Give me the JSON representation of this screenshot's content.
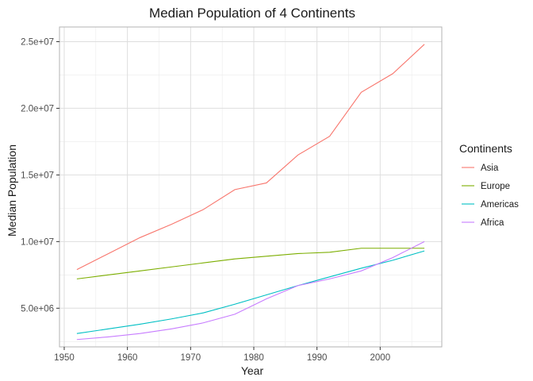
{
  "chart_data": {
    "type": "line",
    "title": "Median Population of 4 Continents",
    "xlabel": "Year",
    "ylabel": "Median Population",
    "xlim": [
      1949.25,
      2009.75
    ],
    "ylim": [
      2100000,
      26100000
    ],
    "x_ticks": [
      1950,
      1960,
      1970,
      1980,
      1990,
      2000
    ],
    "x_tick_labels": [
      "1950",
      "1960",
      "1970",
      "1980",
      "1990",
      "2000"
    ],
    "y_ticks": [
      5000000,
      10000000,
      15000000,
      20000000,
      25000000
    ],
    "y_tick_labels": [
      "5.0e+06",
      "1.0e+07",
      "1.5e+07",
      "2.0e+07",
      "2.5e+07"
    ],
    "grid": true,
    "legend_title": "Continents",
    "legend_position": "right",
    "x": [
      1952,
      1957,
      1962,
      1967,
      1972,
      1977,
      1982,
      1987,
      1992,
      1997,
      2002,
      2007
    ],
    "series": [
      {
        "name": "Asia",
        "color": "#F8766D",
        "values": [
          7900000,
          9100000,
          10300000,
          11300000,
          12400000,
          13900000,
          14400000,
          16500000,
          17900000,
          21200000,
          22600000,
          24800000
        ]
      },
      {
        "name": "Europe",
        "color": "#7CAE00",
        "values": [
          7200000,
          7500000,
          7800000,
          8100000,
          8400000,
          8700000,
          8900000,
          9100000,
          9200000,
          9500000,
          9500000,
          9500000
        ]
      },
      {
        "name": "Americas",
        "color": "#00BFC4",
        "values": [
          3100000,
          3450000,
          3800000,
          4200000,
          4650000,
          5300000,
          6000000,
          6700000,
          7350000,
          8000000,
          8600000,
          9300000
        ]
      },
      {
        "name": "Africa",
        "color": "#C77CFF",
        "values": [
          2650000,
          2850000,
          3100000,
          3450000,
          3900000,
          4550000,
          5700000,
          6700000,
          7200000,
          7800000,
          8800000,
          10000000
        ]
      }
    ]
  }
}
